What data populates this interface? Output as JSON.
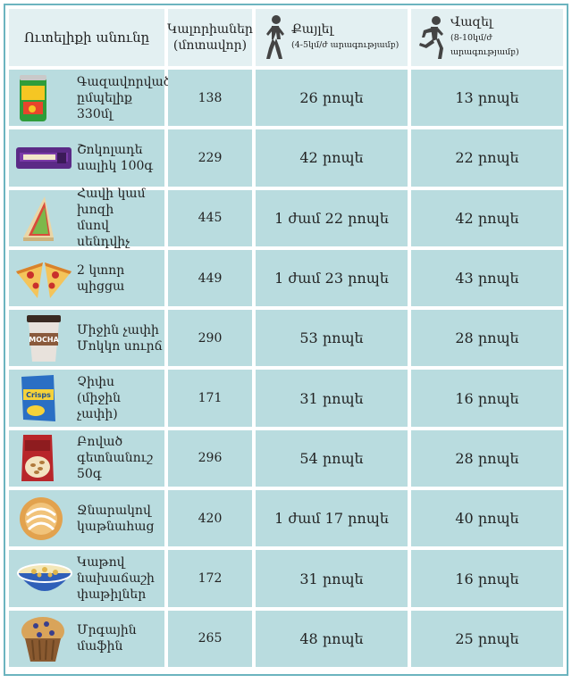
{
  "header": {
    "food": "Ուտելիքի անունը",
    "calories_line1": "Կալորիաներ",
    "calories_line2": "(մոտավոր)",
    "walk_title": "Քայլել",
    "walk_sub": "(4-5կմ/ժ արագությամբ)",
    "run_title": "Վազել",
    "run_sub": "(8-10կմ/ժ արագությամբ)"
  },
  "icons": {
    "walk": "walking-person-icon",
    "run": "running-person-icon"
  },
  "rows": [
    {
      "name_line1": "Գազավորված",
      "name_line2": "ըմպելիք 330մլ",
      "calories": "138",
      "walk": "26 րոպե",
      "run": "13 րոպե",
      "image": "soda-can"
    },
    {
      "name_line1": "Շոկոլադե",
      "name_line2": "սալիկ 100գ",
      "calories": "229",
      "walk": "42 րոպե",
      "run": "22 րոպե",
      "image": "chocolate-bar"
    },
    {
      "name_line1": "Հավի կամ խոզի",
      "name_line2": "մսով սենդվիչ",
      "calories": "445",
      "walk": "1 ժամ 22 րոպե",
      "run": "42 րոպե",
      "image": "sandwich"
    },
    {
      "name_line1": "2 կտոր",
      "name_line2": "պիցցա",
      "calories": "449",
      "walk": "1 ժամ 23 րոպե",
      "run": "43 րոպե",
      "image": "pizza"
    },
    {
      "name_line1": "Միջին չափի",
      "name_line2": "Մոկկո սուրճ",
      "calories": "290",
      "walk": "53 րոպե",
      "run": "28 րոպե",
      "image": "coffee-cup",
      "cup_label": "MOCHA"
    },
    {
      "name_line1": "Չիփս",
      "name_line2": "(միջին չափի)",
      "calories": "171",
      "walk": "31 րոպե",
      "run": "16 րոպե",
      "image": "chips-bag",
      "bag_label": "Crisps"
    },
    {
      "name_line1": "Բոված",
      "name_line2": "գետնանուշ 50գ",
      "calories": "296",
      "walk": "54 րոպե",
      "run": "28 րոպե",
      "image": "peanuts-bag"
    },
    {
      "name_line1": "Ջնարակով",
      "name_line2": "կաթնահաց",
      "calories": "420",
      "walk": "1 ժամ 17 րոպե",
      "run": "40 րոպե",
      "image": "glazed-bun"
    },
    {
      "name_line1": "Կաթով",
      "name_line2": "նախաճաշի",
      "name_line3": "փաթիլներ",
      "calories": "172",
      "walk": "31 րոպե",
      "run": "16 րոպե",
      "image": "cereal-bowl"
    },
    {
      "name_line1": "Մրգային մաֆին",
      "name_line2": "",
      "calories": "265",
      "walk": "48 րոպե",
      "run": "25 րոպե",
      "image": "muffin"
    }
  ],
  "colors": {
    "cell_bg": "#b9dcdf",
    "header_bg": "#e3f0f2",
    "frame": "#6cb4bf"
  }
}
